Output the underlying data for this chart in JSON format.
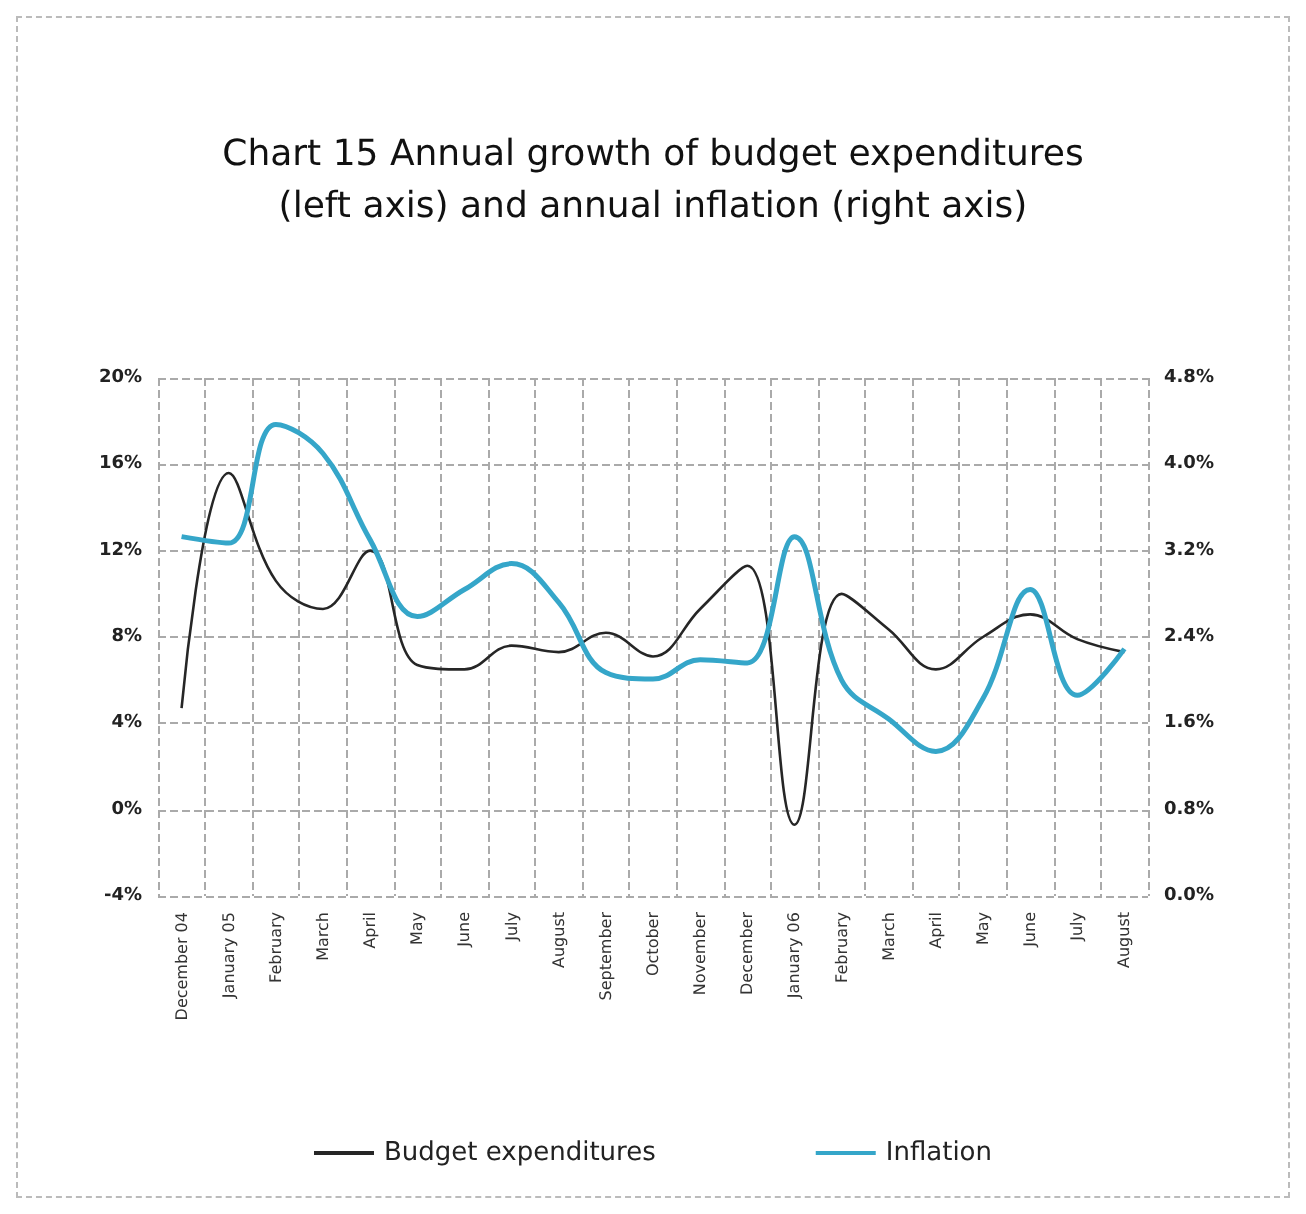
{
  "chart_data": {
    "type": "line",
    "title": "Chart 15 Annual growth of budget expenditures\n(left axis) and annual inflation (right axis)",
    "categories": [
      "December 04",
      "January 05",
      "February",
      "March",
      "April",
      "May",
      "June",
      "July",
      "August",
      "September",
      "October",
      "November",
      "December",
      "January 06",
      "February",
      "March",
      "April",
      "May",
      "June",
      "July",
      "August"
    ],
    "series": [
      {
        "name": "Budget expenditures",
        "color": "#262626",
        "values": [
          4.7,
          15.6,
          10.6,
          9.3,
          12.0,
          6.7,
          6.5,
          7.6,
          7.3,
          8.2,
          7.1,
          9.3,
          11.3,
          -0.7,
          10.0,
          8.35,
          6.5,
          8.0,
          9.05,
          7.9,
          7.3
        ]
      },
      {
        "name": "Inflation",
        "color": "#35a6c9",
        "axis": "y2",
        "values": [
          3.33,
          3.27,
          4.37,
          4.1,
          3.3,
          2.59,
          2.84,
          3.08,
          2.72,
          2.07,
          2.01,
          2.19,
          2.16,
          3.33,
          2.0,
          1.64,
          1.34,
          1.83,
          2.84,
          1.86,
          2.29
        ]
      }
    ],
    "ylim": [
      -4,
      20
    ],
    "yticks": [
      {
        "value": -4,
        "label": "-4%"
      },
      {
        "value": 0,
        "label": "0%"
      },
      {
        "value": 4,
        "label": "4%"
      },
      {
        "value": 8,
        "label": "8%"
      },
      {
        "value": 12,
        "label": "12%"
      },
      {
        "value": 16,
        "label": "16%"
      },
      {
        "value": 20,
        "label": "20%"
      }
    ],
    "y2lim": [
      0,
      4.8
    ],
    "y2ticks": [
      {
        "value": 0,
        "label": "0.0%"
      },
      {
        "value": 0.8,
        "label": "0.8%"
      },
      {
        "value": 1.6,
        "label": "1.6%"
      },
      {
        "value": 2.4,
        "label": "2.4%"
      },
      {
        "value": 3.2,
        "label": "3.2%"
      },
      {
        "value": 4.0,
        "label": "4.0%"
      },
      {
        "value": 4.8,
        "label": "4.8%"
      }
    ],
    "grid": true,
    "legend": "bottom",
    "marker": "none",
    "line_style": "solid"
  }
}
